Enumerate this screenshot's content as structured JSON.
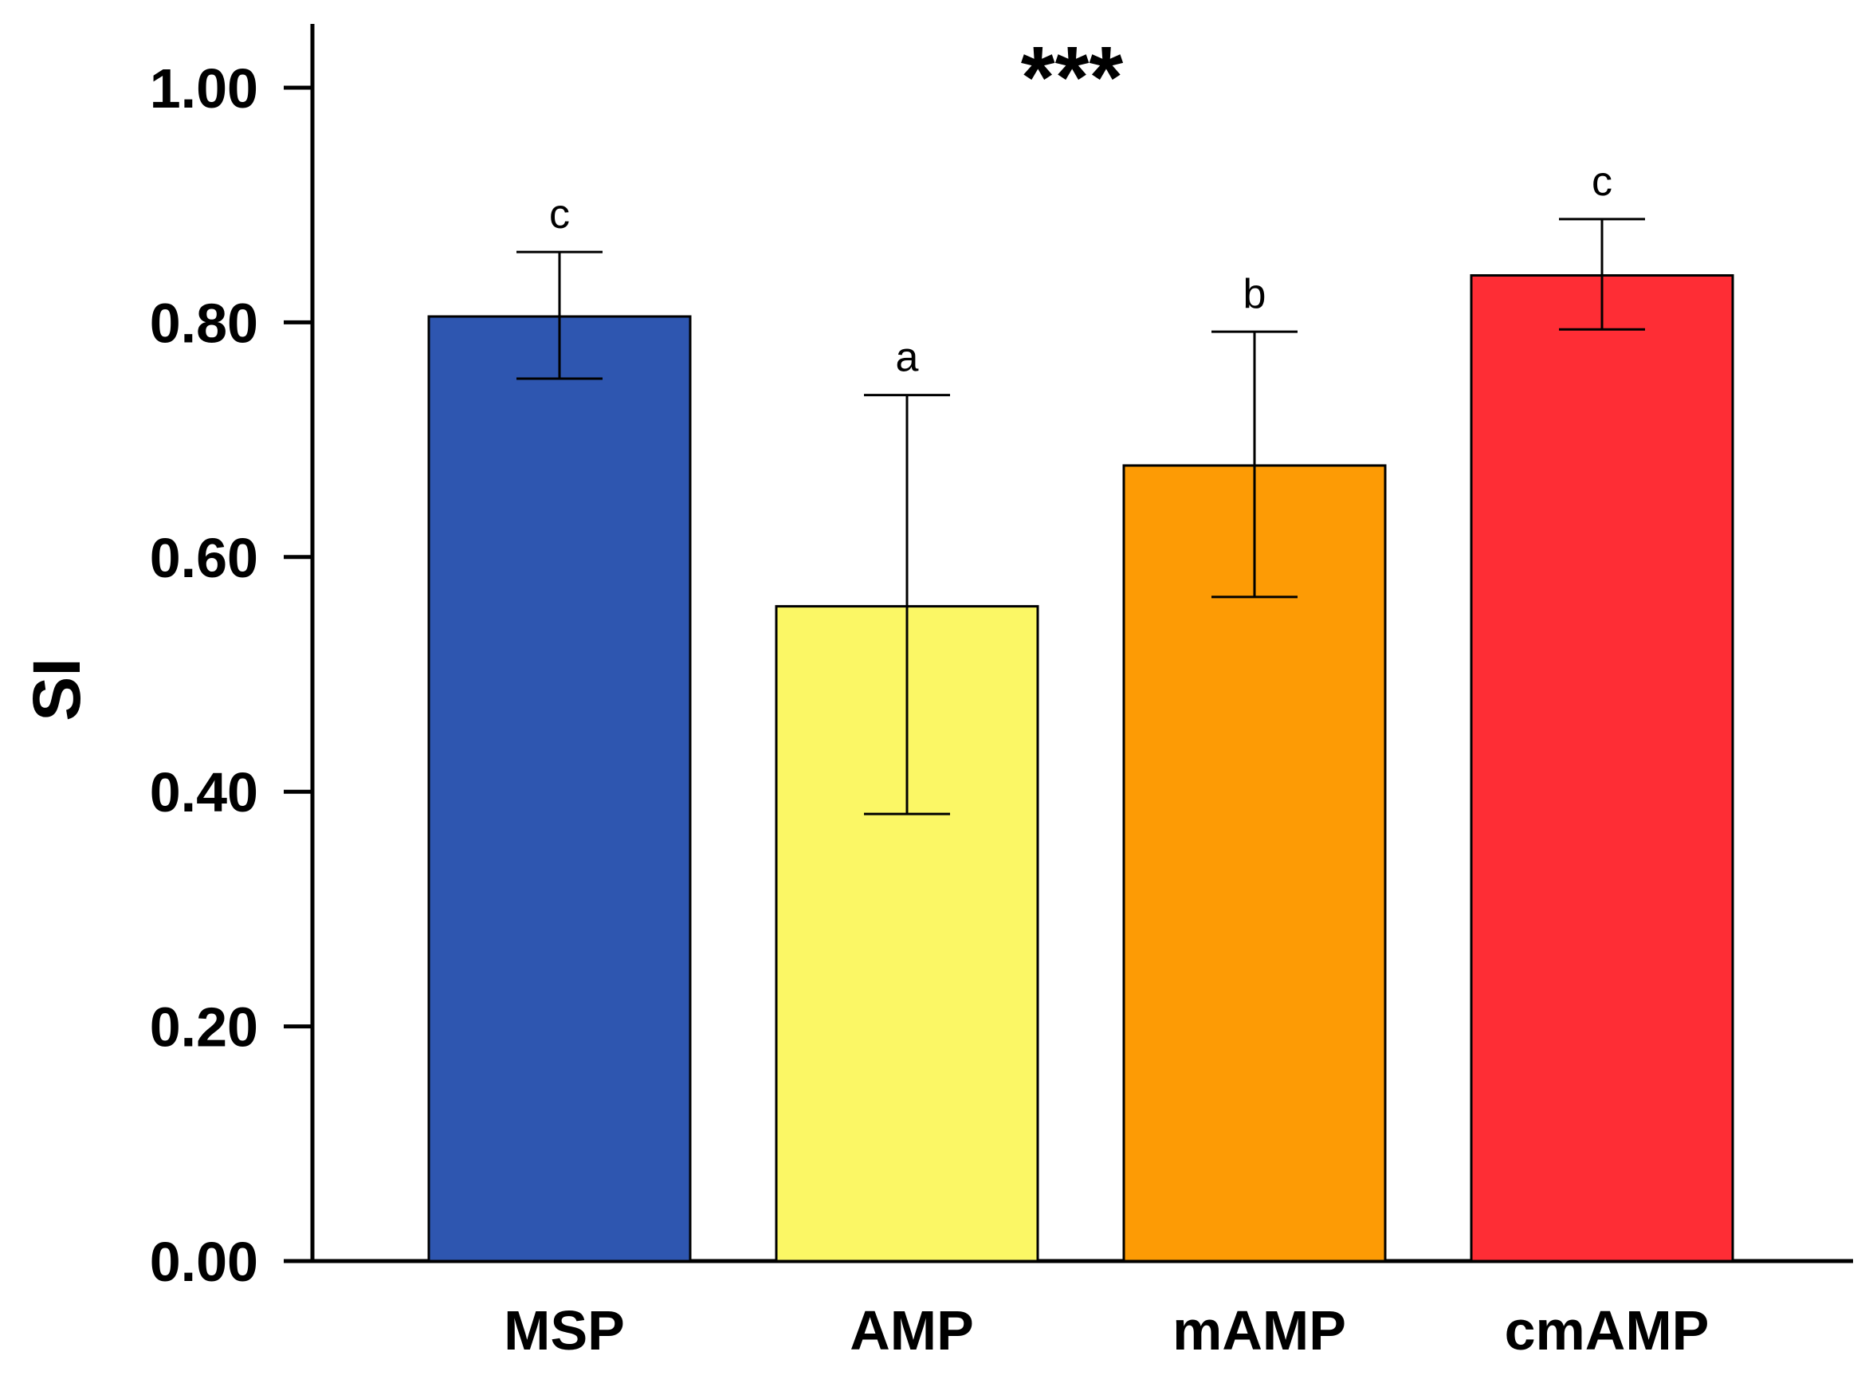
{
  "chart_data": {
    "type": "bar",
    "title": "***",
    "xlabel": "",
    "ylabel": "SI",
    "ylim": [
      0,
      1.05
    ],
    "yticks": [
      0.0,
      0.2,
      0.4,
      0.6,
      0.8,
      1.0
    ],
    "ytick_labels": [
      "0.00",
      "0.20",
      "0.40",
      "0.60",
      "0.80",
      "1.00"
    ],
    "categories": [
      "MSP",
      "AMP",
      "mAMP",
      "cmAMP"
    ],
    "values": [
      0.805,
      0.558,
      0.678,
      0.84
    ],
    "error_low": [
      0.752,
      0.381,
      0.566,
      0.794
    ],
    "error_high": [
      0.86,
      0.738,
      0.792,
      0.888
    ],
    "significance_letters": [
      "c",
      "a",
      "b",
      "c"
    ],
    "bar_colors": [
      "#2E56B0",
      "#FBF765",
      "#FD9B05",
      "#FE2D35"
    ],
    "grid": false
  }
}
